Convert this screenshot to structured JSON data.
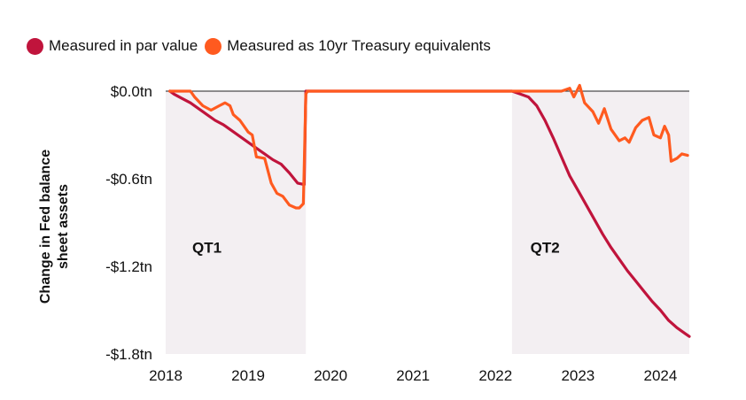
{
  "chart_data": {
    "type": "line",
    "title": "",
    "ylabel": "Change in Fed balance sheet assets",
    "xlabel": "",
    "ylim": [
      -1.8,
      0
    ],
    "xlim": [
      2018,
      2024.35
    ],
    "y_ticks": [
      {
        "value": 0,
        "label": "$0.0tn"
      },
      {
        "value": -0.6,
        "label": "-$0.6tn"
      },
      {
        "value": -1.2,
        "label": "-$1.2tn"
      },
      {
        "value": -1.8,
        "label": "-$1.8tn"
      }
    ],
    "x_ticks": [
      {
        "value": 2018,
        "label": "2018"
      },
      {
        "value": 2019,
        "label": "2019"
      },
      {
        "value": 2020,
        "label": "2020"
      },
      {
        "value": 2021,
        "label": "2021"
      },
      {
        "value": 2022,
        "label": "2022"
      },
      {
        "value": 2023,
        "label": "2023"
      },
      {
        "value": 2024,
        "label": "2024"
      }
    ],
    "shaded_periods": [
      {
        "label": "QT1",
        "x": [
          2018.0,
          2019.7
        ]
      },
      {
        "label": "QT2",
        "x": [
          2022.2,
          2024.35
        ]
      }
    ],
    "grid": false,
    "legend_position": "top-left",
    "series": [
      {
        "name": "Measured in par value",
        "color": "#c0143c",
        "points": [
          [
            2018.05,
            0.0
          ],
          [
            2018.1,
            -0.02
          ],
          [
            2018.2,
            -0.05
          ],
          [
            2018.3,
            -0.08
          ],
          [
            2018.4,
            -0.12
          ],
          [
            2018.5,
            -0.16
          ],
          [
            2018.6,
            -0.2
          ],
          [
            2018.7,
            -0.23
          ],
          [
            2018.8,
            -0.27
          ],
          [
            2018.9,
            -0.31
          ],
          [
            2019.0,
            -0.35
          ],
          [
            2019.1,
            -0.39
          ],
          [
            2019.2,
            -0.43
          ],
          [
            2019.3,
            -0.47
          ],
          [
            2019.4,
            -0.5
          ],
          [
            2019.5,
            -0.56
          ],
          [
            2019.6,
            -0.63
          ],
          [
            2019.68,
            -0.64
          ],
          [
            2019.7,
            -0.0
          ],
          [
            2020.0,
            0.0
          ],
          [
            2021.0,
            0.0
          ],
          [
            2022.2,
            0.0
          ],
          [
            2022.3,
            -0.02
          ],
          [
            2022.4,
            -0.04
          ],
          [
            2022.5,
            -0.1
          ],
          [
            2022.6,
            -0.2
          ],
          [
            2022.7,
            -0.32
          ],
          [
            2022.8,
            -0.45
          ],
          [
            2022.9,
            -0.58
          ],
          [
            2023.0,
            -0.68
          ],
          [
            2023.1,
            -0.78
          ],
          [
            2023.2,
            -0.88
          ],
          [
            2023.3,
            -0.98
          ],
          [
            2023.4,
            -1.07
          ],
          [
            2023.5,
            -1.15
          ],
          [
            2023.6,
            -1.23
          ],
          [
            2023.7,
            -1.3
          ],
          [
            2023.8,
            -1.37
          ],
          [
            2023.9,
            -1.44
          ],
          [
            2024.0,
            -1.5
          ],
          [
            2024.1,
            -1.57
          ],
          [
            2024.2,
            -1.62
          ],
          [
            2024.3,
            -1.66
          ],
          [
            2024.35,
            -1.68
          ]
        ]
      },
      {
        "name": "Measured as 10yr Treasury equivalents",
        "color": "#ff5a1f",
        "points": [
          [
            2018.05,
            0.0
          ],
          [
            2018.3,
            0.0
          ],
          [
            2018.35,
            -0.04
          ],
          [
            2018.45,
            -0.1
          ],
          [
            2018.55,
            -0.13
          ],
          [
            2018.65,
            -0.1
          ],
          [
            2018.72,
            -0.08
          ],
          [
            2018.78,
            -0.1
          ],
          [
            2018.82,
            -0.16
          ],
          [
            2018.9,
            -0.2
          ],
          [
            2019.0,
            -0.28
          ],
          [
            2019.05,
            -0.3
          ],
          [
            2019.1,
            -0.45
          ],
          [
            2019.2,
            -0.46
          ],
          [
            2019.28,
            -0.63
          ],
          [
            2019.35,
            -0.7
          ],
          [
            2019.42,
            -0.72
          ],
          [
            2019.5,
            -0.78
          ],
          [
            2019.58,
            -0.8
          ],
          [
            2019.62,
            -0.8
          ],
          [
            2019.67,
            -0.77
          ],
          [
            2019.7,
            -0.02
          ],
          [
            2019.72,
            0.0
          ],
          [
            2020.0,
            0.0
          ],
          [
            2021.0,
            0.0
          ],
          [
            2022.2,
            0.0
          ],
          [
            2022.8,
            0.0
          ],
          [
            2022.9,
            0.02
          ],
          [
            2022.95,
            -0.04
          ],
          [
            2023.02,
            0.04
          ],
          [
            2023.08,
            -0.08
          ],
          [
            2023.18,
            -0.14
          ],
          [
            2023.25,
            -0.22
          ],
          [
            2023.32,
            -0.12
          ],
          [
            2023.4,
            -0.26
          ],
          [
            2023.5,
            -0.34
          ],
          [
            2023.57,
            -0.32
          ],
          [
            2023.62,
            -0.35
          ],
          [
            2023.7,
            -0.25
          ],
          [
            2023.78,
            -0.2
          ],
          [
            2023.86,
            -0.18
          ],
          [
            2023.92,
            -0.3
          ],
          [
            2024.0,
            -0.32
          ],
          [
            2024.05,
            -0.24
          ],
          [
            2024.1,
            -0.3
          ],
          [
            2024.13,
            -0.48
          ],
          [
            2024.2,
            -0.46
          ],
          [
            2024.26,
            -0.43
          ],
          [
            2024.33,
            -0.44
          ]
        ]
      }
    ],
    "annotations": [
      {
        "text": "QT1",
        "x": 2018.5,
        "y": -1.07
      },
      {
        "text": "QT2",
        "x": 2022.6,
        "y": -1.07
      }
    ]
  }
}
